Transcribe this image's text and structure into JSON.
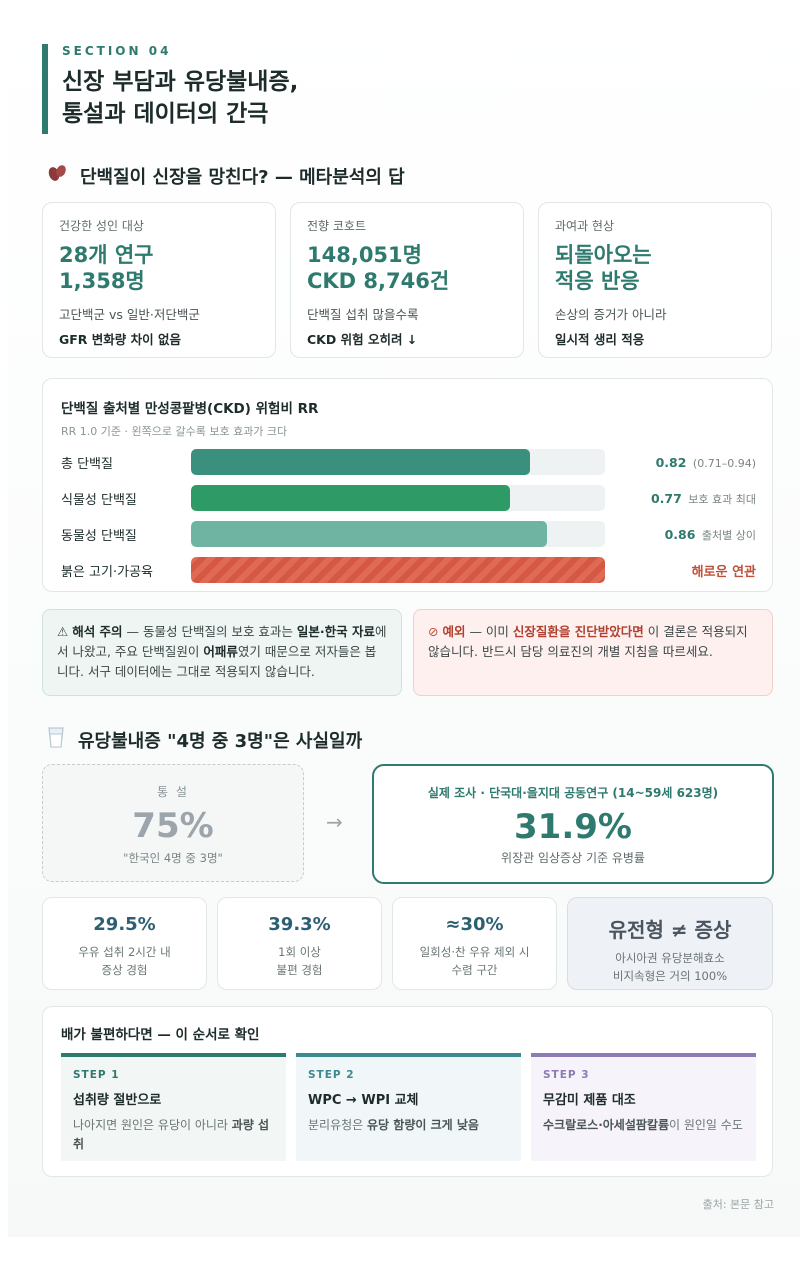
{
  "header": {
    "section_label": "SECTION 04",
    "title_line1": "신장 부담과 유당불내증,",
    "title_line2": "통설과 데이터의 간극"
  },
  "protein_section": {
    "title": "단백질이 신장을 망친다? — 메타분석의 답",
    "icon": "kidney-beans-icon",
    "cards": [
      {
        "label": "건강한 성인 대상",
        "big1": "28개 연구",
        "big2": "1,358명",
        "sub": "고단백군 vs 일반·저단백군",
        "emphasis": "GFR 변화량 차이 없음"
      },
      {
        "label": "전향 코호트",
        "big1": "148,051명",
        "big2": "CKD 8,746건",
        "sub": "단백질 섭취 많을수록",
        "emphasis": "CKD 위험 오히려 ↓"
      },
      {
        "label": "과여과 현상",
        "big1": "되돌아오는",
        "big2": "적응 반응",
        "sub": "손상의 증거가 아니라",
        "emphasis": "일시적 생리 적응"
      }
    ]
  },
  "chart_data": {
    "type": "bar",
    "orientation": "horizontal",
    "title": "단백질 출처별 만성콩팥병(CKD) 위험비 RR",
    "subtitle": "RR 1.0 기준 · 왼쪽으로 갈수록 보호 효과가 크다",
    "reference": 1.0,
    "xlim": [
      0,
      1
    ],
    "categories": [
      "총 단백질",
      "식물성 단백질",
      "동물성 단백질",
      "붉은 고기·가공육"
    ],
    "values": [
      0.82,
      0.77,
      0.86,
      null
    ],
    "value_labels": [
      "0.82",
      "0.77",
      "0.86",
      "해로운 연관"
    ],
    "notes": [
      "(0.71–0.94)",
      "보호 효과 최대",
      "출처별 상이",
      ""
    ],
    "colors": [
      "#3a8f7d",
      "#2e9a66",
      "#6fb3a2",
      "#e06a55"
    ]
  },
  "notes": {
    "warn": {
      "icon": "warning-icon",
      "lead": "해석 주의",
      "t1": " — 동물성 단백질의 보호 효과는 ",
      "b1": "일본·한국 자료",
      "t2": "에서 나왔고, 주요 단백질원이 ",
      "b2": "어패류",
      "t3": "였기 때문으로 저자들은 봅니다. 서구 데이터에는 그대로 적용되지 않습니다."
    },
    "stop": {
      "icon": "prohibited-icon",
      "lead": "예외",
      "t1": " — 이미 ",
      "b1": "신장질환을 진단받았다면",
      "t2": " 이 결론은 적용되지 않습니다. 반드시 담당 의료진의 개별 지침을 따르세요."
    }
  },
  "lactose_section": {
    "title": "유당불내증 \"4명 중 3명\"은 사실일까",
    "icon": "milk-glass-icon",
    "myth": {
      "label": "통 설",
      "value": "75%",
      "desc": "\"한국인 4명 중 3명\""
    },
    "arrow": "→",
    "fact": {
      "label": "실제 조사 · 단국대·을지대 공동연구 (14~59세 623명)",
      "value": "31.9%",
      "desc": "위장관 임상증상 기준 유병률"
    },
    "minis": [
      {
        "value": "29.5%",
        "line1": "우유 섭취 2시간 내",
        "line2": "증상 경험"
      },
      {
        "value": "39.3%",
        "line1": "1회 이상",
        "line2": "불편 경험"
      },
      {
        "value": "≈30%",
        "line1": "일회성·찬 우유 제외 시",
        "line2": "수렴 구간"
      },
      {
        "value": "유전형 ≠ 증상",
        "line1": "아시아권 유당분해효소",
        "line2": "비지속형은 거의 100%"
      }
    ]
  },
  "steps": {
    "title": "배가 불편하다면 — 이 순서로 확인",
    "items": [
      {
        "step": "STEP 1",
        "head": "섭취량 절반으로",
        "p1": "나아지면 원인은 유당이 아니라 ",
        "b": "과량 섭취",
        "p2": "",
        "color": "#2f7a6e"
      },
      {
        "step": "STEP 2",
        "head": "WPC → WPI 교체",
        "p1": "분리유청은 ",
        "b": "유당 함량이 크게 낮음",
        "p2": "",
        "color": "#3b8a90"
      },
      {
        "step": "STEP 3",
        "head": "무감미 제품 대조",
        "p1": "",
        "b": "수크랄로스·아세설팜칼륨",
        "p2": "이 원인일 수도",
        "color": "#8c7bb5"
      }
    ]
  },
  "source": "출처: 본문 참고"
}
